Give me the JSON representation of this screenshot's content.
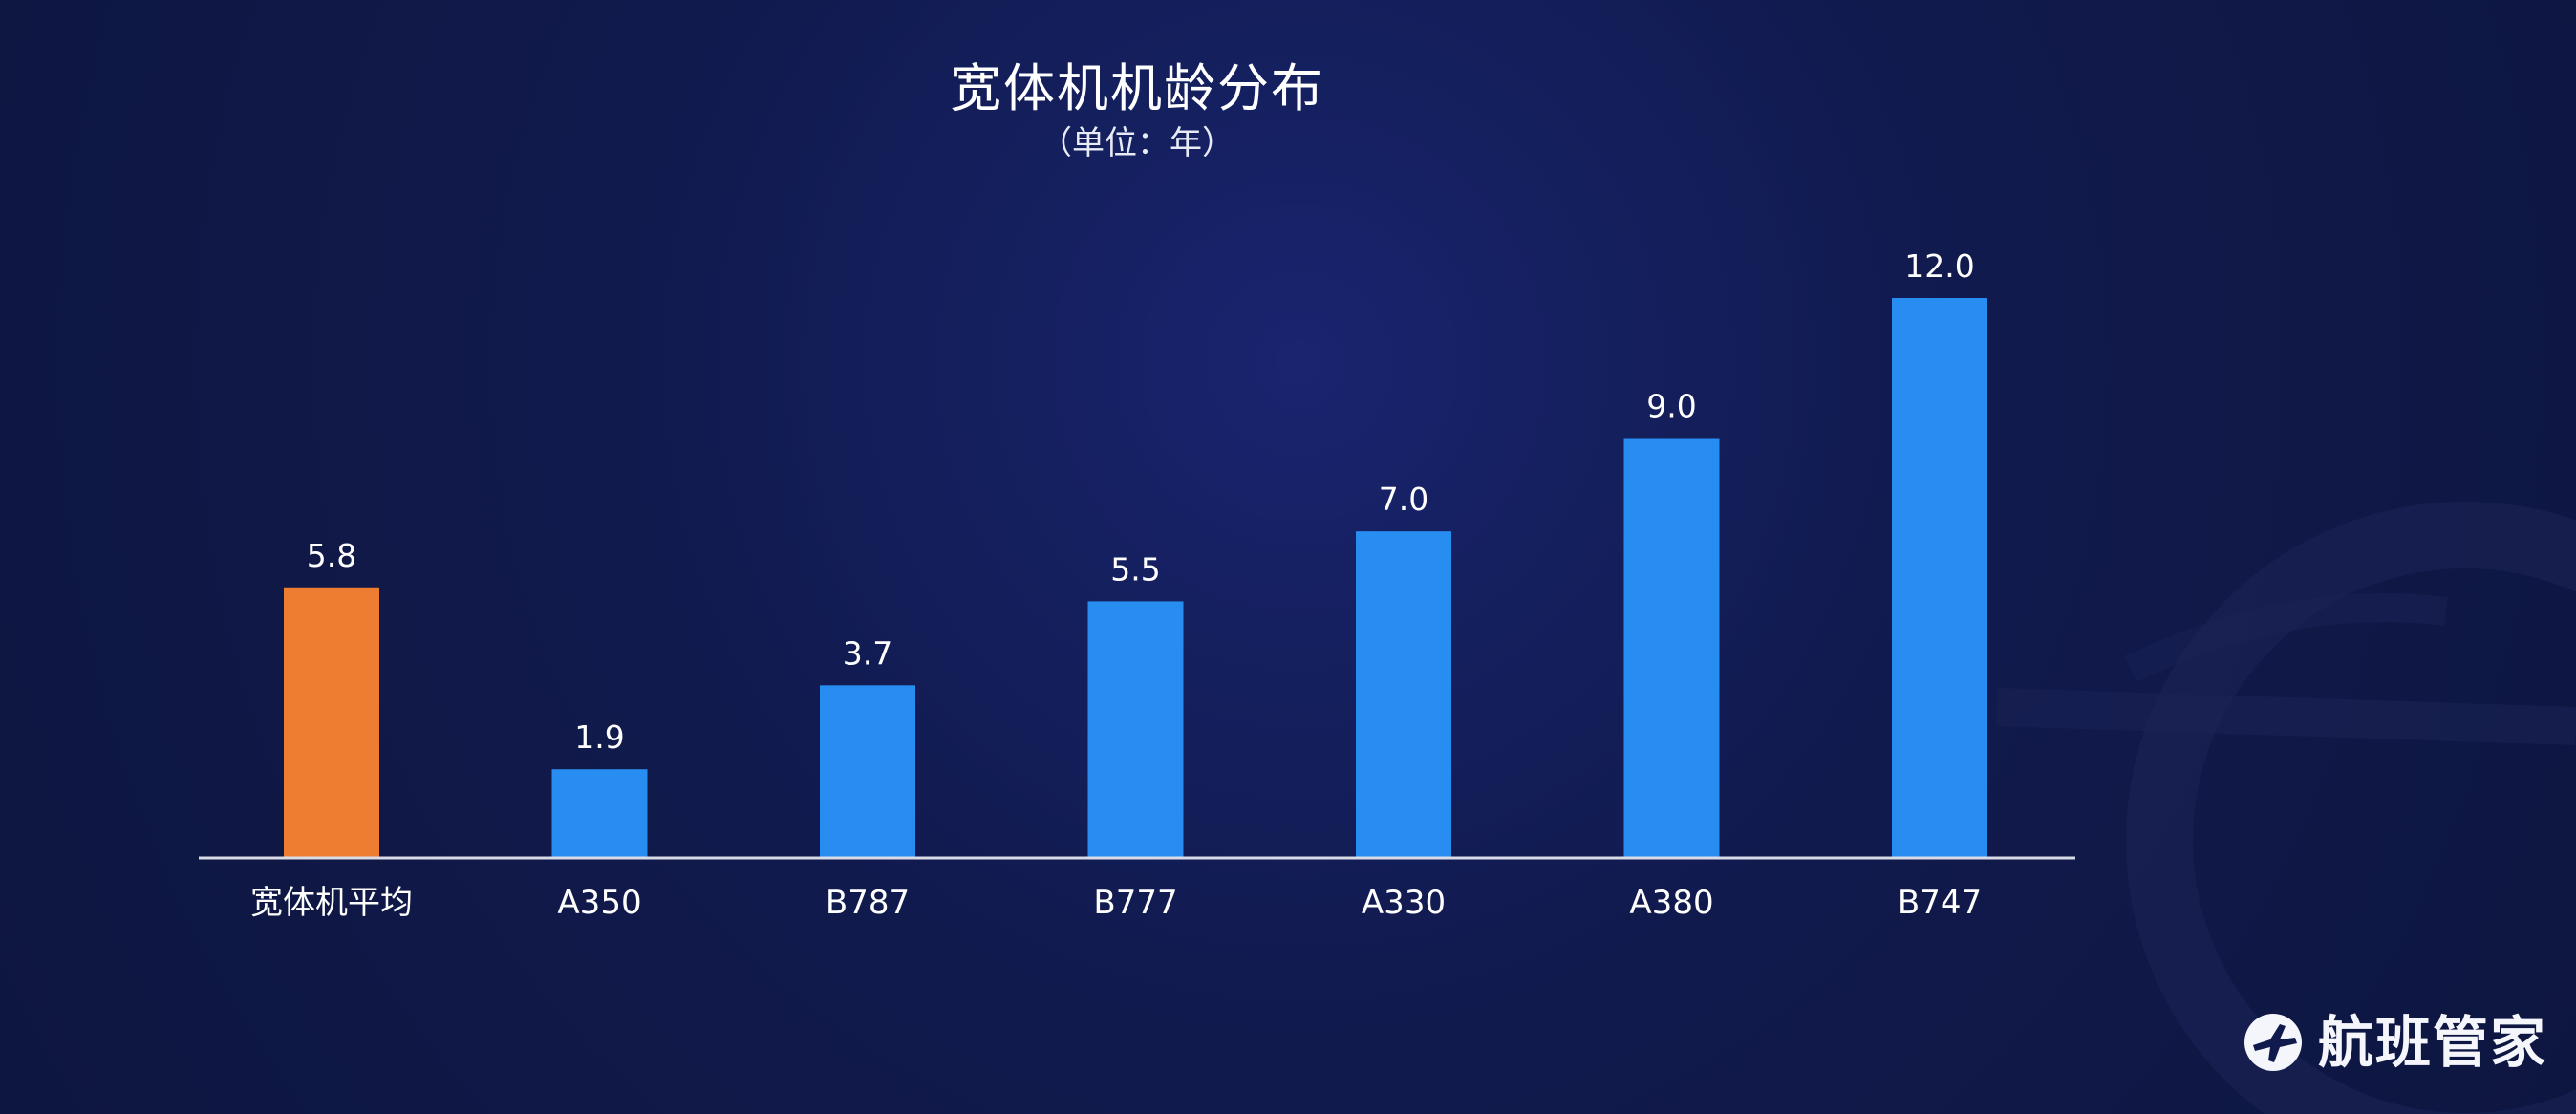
{
  "title": "宽体机机龄分布",
  "subtitle": "（单位：年）",
  "brand": {
    "name": "航班管家",
    "icon": "airplane-logo-icon"
  },
  "colors": {
    "background": "#111a4d",
    "average_bar": "#ee7d31",
    "model_bar": "#288df0",
    "axis_line": "#d9dbe6",
    "text": "#ffffff"
  },
  "chart_data": {
    "type": "bar",
    "title": "宽体机机龄分布",
    "subtitle": "（单位：年）",
    "xlabel": "",
    "ylabel": "",
    "categories": [
      "宽体机平均",
      "A350",
      "B787",
      "B777",
      "A330",
      "A380",
      "B747"
    ],
    "values": [
      5.8,
      1.9,
      3.7,
      5.5,
      7.0,
      9.0,
      12.0
    ],
    "value_labels": [
      "5.8",
      "1.9",
      "3.7",
      "5.5",
      "7.0",
      "9.0",
      "12.0"
    ],
    "ylim": [
      0,
      12
    ],
    "grid": false,
    "legend": "none",
    "highlight_index": 0
  }
}
